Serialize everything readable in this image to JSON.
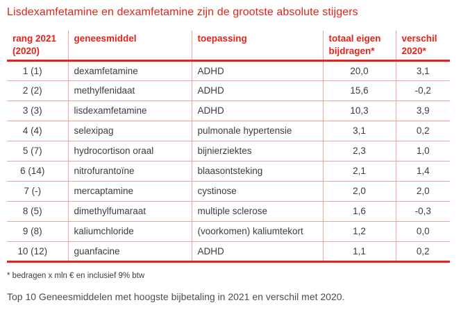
{
  "title": "Lisdexamfetamine en dexamfetamine zijn de grootste absolute stijgers",
  "table": {
    "headers": {
      "rank": "rang 2021 (2020)",
      "drug": "geneesmiddel",
      "use": "toepassing",
      "total": "totaal eigen bijdragen*",
      "diff": "verschil 2020*"
    },
    "rows": [
      {
        "rank": "1 (1)",
        "drug": "dexamfetamine",
        "use": "ADHD",
        "total": "20,0",
        "diff": "3,1"
      },
      {
        "rank": "2 (2)",
        "drug": "methylfenidaat",
        "use": "ADHD",
        "total": "15,6",
        "diff": "-0,2"
      },
      {
        "rank": "3 (3)",
        "drug": "lisdexamfetamine",
        "use": "ADHD",
        "total": "10,3",
        "diff": "3,9"
      },
      {
        "rank": "4 (4)",
        "drug": "selexipag",
        "use": "pulmonale hypertensie",
        "total": "3,1",
        "diff": "0,2"
      },
      {
        "rank": "5 (7)",
        "drug": "hydrocortison oraal",
        "use": "bijnierziektes",
        "total": "2,3",
        "diff": "1,0"
      },
      {
        "rank": "6 (14)",
        "drug": "nitrofurantoïne",
        "use": "blaasontsteking",
        "total": "2,1",
        "diff": "1,4"
      },
      {
        "rank": "7 (-)",
        "drug": "mercaptamine",
        "use": "cystinose",
        "total": "2,0",
        "diff": "2,0"
      },
      {
        "rank": "8 (5)",
        "drug": "dimethylfumaraat",
        "use": "multiple sclerose",
        "total": "1,6",
        "diff": "-0,3"
      },
      {
        "rank": "9 (8)",
        "drug": "kaliumchloride",
        "use": "(voorkomen) kaliumtekort",
        "total": "1,2",
        "diff": "0,0"
      },
      {
        "rank": "10 (12)",
        "drug": "guanfacine",
        "use": "ADHD",
        "total": "1,1",
        "diff": "0,2"
      }
    ]
  },
  "footnote": "* bedragen x mln € en inclusief 9% btw",
  "caption": "Top 10 Geneesmiddelen met hoogste bijbetaling in 2021 en verschil met 2020.",
  "colors": {
    "accent_red": "#e2231a",
    "grid_pink": "#f2a29b",
    "body_text": "#3c3c3b"
  }
}
